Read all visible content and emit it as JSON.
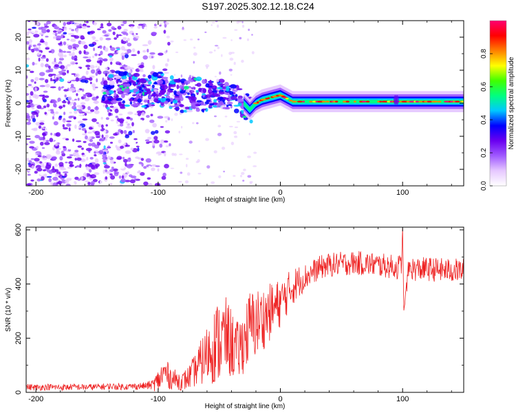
{
  "figure_title": "S197.2025.302.12.18.C24",
  "chart_data": [
    {
      "type": "heatmap",
      "name": "spectrogram",
      "xlabel": "Height of straight line (km)",
      "ylabel": "Frequency (Hz)",
      "xlim": [
        -208,
        150
      ],
      "ylim": [
        -25,
        25
      ],
      "xticks": [
        -200,
        -100,
        0,
        100
      ],
      "yticks": [
        20,
        10,
        0,
        -10,
        -20
      ],
      "colorbar": {
        "label": "Normalized spectral amplitude",
        "range": [
          0,
          1
        ],
        "ticks": [
          0.0,
          0.2,
          0.4,
          0.6,
          0.8
        ],
        "colors": [
          "#ffffff",
          "#e6c8ff",
          "#a05aff",
          "#6a00f0",
          "#0000ff",
          "#00c8ff",
          "#00ff80",
          "#40ff00",
          "#ffff00",
          "#ff8000",
          "#ff0000",
          "#ff0070"
        ]
      },
      "ridge": {
        "x": [
          -145,
          -130,
          -120,
          -110,
          -100,
          -90,
          -80,
          -70,
          -60,
          -50,
          -40,
          -35,
          -30,
          -25,
          -20,
          -15,
          -10,
          -5,
          0,
          5,
          10,
          20,
          40,
          60,
          80,
          100,
          120,
          150
        ],
        "y": [
          5,
          4.5,
          4,
          4,
          4.5,
          3,
          2,
          3,
          2.5,
          3,
          2,
          1,
          0,
          -2,
          0,
          1,
          1.5,
          2,
          2.5,
          1.5,
          0.5,
          0.5,
          0.5,
          0.5,
          0.5,
          0.5,
          0.5,
          0.5
        ]
      }
    },
    {
      "type": "line",
      "name": "snr",
      "xlabel": "Height of straight line (km)",
      "ylabel": "SNR (10 * v/v)",
      "xlim": [
        -208,
        150
      ],
      "ylim": [
        0,
        610
      ],
      "xticks": [
        -200,
        -100,
        0,
        100
      ],
      "yticks": [
        0,
        200,
        400,
        600
      ],
      "color": "#ee2222",
      "series": [
        {
          "name": "SNR",
          "x": [
            -208,
            -200,
            -190,
            -180,
            -170,
            -160,
            -150,
            -140,
            -130,
            -120,
            -110,
            -105,
            -100,
            -95,
            -90,
            -85,
            -80,
            -75,
            -70,
            -65,
            -60,
            -55,
            -50,
            -45,
            -40,
            -35,
            -30,
            -25,
            -20,
            -15,
            -10,
            -5,
            0,
            5,
            10,
            15,
            20,
            25,
            30,
            35,
            40,
            50,
            60,
            70,
            80,
            90,
            95,
            99,
            100,
            101,
            105,
            110,
            120,
            130,
            140,
            150
          ],
          "y": [
            20,
            18,
            20,
            18,
            20,
            19,
            20,
            22,
            21,
            22,
            24,
            28,
            40,
            75,
            55,
            45,
            40,
            55,
            80,
            110,
            140,
            170,
            190,
            205,
            180,
            150,
            190,
            240,
            255,
            270,
            290,
            310,
            330,
            360,
            390,
            410,
            425,
            440,
            455,
            465,
            470,
            475,
            478,
            475,
            470,
            465,
            460,
            470,
            605,
            300,
            460,
            455,
            455,
            452,
            450,
            450
          ],
          "noise": [
            12,
            12,
            12,
            12,
            12,
            12,
            12,
            12,
            12,
            12,
            14,
            18,
            45,
            55,
            45,
            35,
            35,
            45,
            60,
            85,
            110,
            140,
            160,
            150,
            130,
            110,
            120,
            140,
            130,
            120,
            110,
            100,
            90,
            80,
            70,
            60,
            50,
            45,
            45,
            45,
            45,
            45,
            45,
            45,
            45,
            45,
            45,
            45,
            0,
            0,
            45,
            45,
            45,
            45,
            45,
            45
          ]
        }
      ]
    }
  ]
}
